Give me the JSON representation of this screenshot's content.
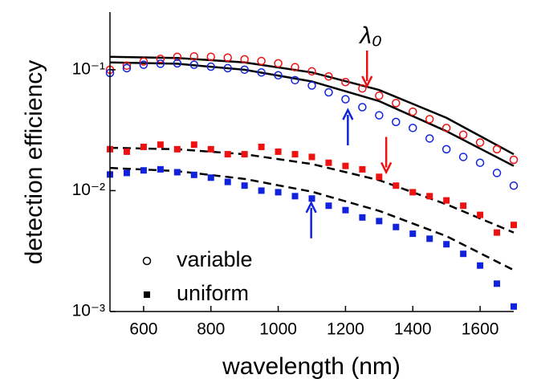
{
  "chart_data": {
    "type": "scatter",
    "xlabel": "wavelength (nm)",
    "ylabel": "detection efficiency",
    "xlim": [
      500,
      1700
    ],
    "xticks": [
      600,
      800,
      1000,
      1200,
      1400,
      1600
    ],
    "ylim": [
      0.001,
      0.3
    ],
    "log_y": true,
    "yticks": [
      {
        "value": 0.001,
        "label": "10⁻³"
      },
      {
        "value": 0.01,
        "label": "10⁻²"
      },
      {
        "value": 0.1,
        "label": "10⁻¹"
      }
    ],
    "x": [
      500,
      550,
      600,
      650,
      700,
      750,
      800,
      850,
      900,
      950,
      1000,
      1050,
      1100,
      1150,
      1200,
      1250,
      1300,
      1350,
      1400,
      1450,
      1500,
      1550,
      1600,
      1650,
      1700
    ],
    "series": [
      {
        "color": "#ee1111",
        "marker": "circle",
        "values": [
          0.1,
          0.108,
          0.117,
          0.123,
          0.128,
          0.129,
          0.128,
          0.126,
          0.122,
          0.118,
          0.113,
          0.105,
          0.097,
          0.088,
          0.079,
          0.07,
          0.061,
          0.053,
          0.045,
          0.039,
          0.033,
          0.029,
          0.025,
          0.022,
          0.018
        ]
      },
      {
        "color": "#1122dd",
        "marker": "circle",
        "values": [
          0.094,
          0.103,
          0.11,
          0.112,
          0.113,
          0.11,
          0.106,
          0.103,
          0.1,
          0.095,
          0.09,
          0.082,
          0.074,
          0.065,
          0.057,
          0.049,
          0.042,
          0.037,
          0.033,
          0.027,
          0.022,
          0.019,
          0.017,
          0.014,
          0.011
        ]
      },
      {
        "color": "#ee1111",
        "marker": "square",
        "values": [
          0.022,
          0.021,
          0.023,
          0.024,
          0.022,
          0.024,
          0.022,
          0.02,
          0.02,
          0.023,
          0.021,
          0.02,
          0.019,
          0.017,
          0.016,
          0.015,
          0.013,
          0.011,
          0.0097,
          0.009,
          0.0083,
          0.0075,
          0.0063,
          0.0045,
          0.0052
        ]
      },
      {
        "color": "#1122dd",
        "marker": "square",
        "values": [
          0.0136,
          0.014,
          0.0147,
          0.015,
          0.0142,
          0.0135,
          0.0128,
          0.0118,
          0.011,
          0.01,
          0.0097,
          0.009,
          0.0086,
          0.0075,
          0.0069,
          0.006,
          0.0056,
          0.005,
          0.0044,
          0.004,
          0.0036,
          0.003,
          0.0024,
          0.0017,
          0.0011
        ]
      }
    ],
    "fits": [
      {
        "style": "solid",
        "x": [
          500,
          700,
          900,
          1100,
          1300,
          1500,
          1700
        ],
        "values": [
          0.128,
          0.125,
          0.115,
          0.095,
          0.068,
          0.04,
          0.02
        ]
      },
      {
        "style": "solid",
        "x": [
          500,
          700,
          900,
          1100,
          1300,
          1500,
          1700
        ],
        "values": [
          0.115,
          0.112,
          0.1,
          0.08,
          0.055,
          0.031,
          0.016
        ]
      },
      {
        "style": "dashed",
        "x": [
          500,
          700,
          900,
          1100,
          1300,
          1500,
          1700
        ],
        "values": [
          0.0226,
          0.022,
          0.02,
          0.0166,
          0.0122,
          0.0077,
          0.0045
        ]
      },
      {
        "style": "dashed",
        "x": [
          500,
          700,
          900,
          1100,
          1300,
          1500,
          1700
        ],
        "values": [
          0.0154,
          0.0145,
          0.0125,
          0.0098,
          0.0068,
          0.0042,
          0.0022
        ]
      }
    ],
    "arrows": [
      {
        "x": 1264,
        "y": 0.0736,
        "direction": "down",
        "color": "#ee1111"
      },
      {
        "x": 1207,
        "y": 0.0464,
        "direction": "up",
        "color": "#1122dd"
      },
      {
        "x": 1321,
        "y": 0.0142,
        "direction": "down",
        "color": "#ee1111"
      },
      {
        "x": 1098,
        "y": 0.0079,
        "direction": "up",
        "color": "#1122dd"
      }
    ],
    "annotation": "λ₀",
    "legend": [
      {
        "label": "variable",
        "marker": "circle"
      },
      {
        "label": "uniform",
        "marker": "square"
      }
    ]
  }
}
